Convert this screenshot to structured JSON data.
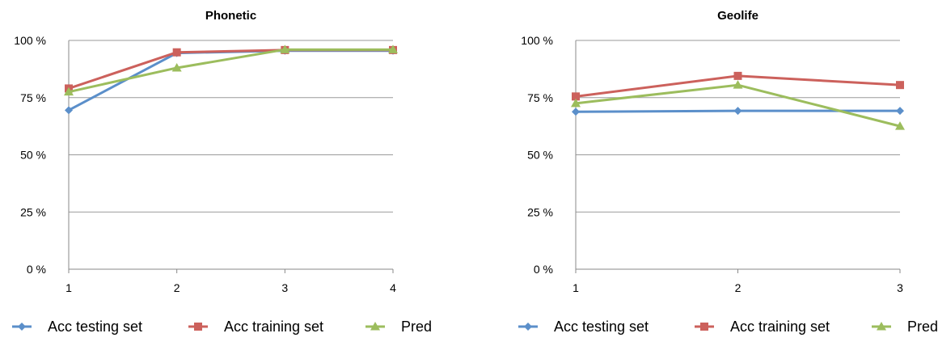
{
  "chart_data": [
    {
      "type": "line",
      "title": "Phonetic",
      "xlabel": "",
      "ylabel": "",
      "x": [
        1,
        2,
        3,
        4
      ],
      "ylim": [
        0,
        100
      ],
      "yticks": [
        "0 %",
        "25 %",
        "50 %",
        "75 %",
        "100 %"
      ],
      "ytick_values": [
        0,
        25,
        50,
        75,
        100
      ],
      "grid": true,
      "legend_position": "bottom",
      "series": [
        {
          "name": "Acc testing set",
          "color": "#5b8fca",
          "marker": "diamond",
          "values": [
            69.5,
            94.5,
            95.5,
            95.5
          ]
        },
        {
          "name": "Acc training set",
          "color": "#cc615c",
          "marker": "square",
          "values": [
            79,
            94.8,
            95.8,
            95.8
          ]
        },
        {
          "name": "Pred",
          "color": "#9cbd5d",
          "marker": "triangle",
          "values": [
            77.5,
            88,
            96,
            96
          ]
        }
      ]
    },
    {
      "type": "line",
      "title": "Geolife",
      "xlabel": "",
      "ylabel": "",
      "x": [
        1,
        2,
        3
      ],
      "ylim": [
        0,
        100
      ],
      "yticks": [
        "0 %",
        "25 %",
        "50 %",
        "75 %",
        "100 %"
      ],
      "ytick_values": [
        0,
        25,
        50,
        75,
        100
      ],
      "grid": true,
      "legend_position": "bottom",
      "series": [
        {
          "name": "Acc testing set",
          "color": "#5b8fca",
          "marker": "diamond",
          "values": [
            68.8,
            69.2,
            69.2
          ]
        },
        {
          "name": "Acc training set",
          "color": "#cc615c",
          "marker": "square",
          "values": [
            75.5,
            84.5,
            80.5
          ]
        },
        {
          "name": "Pred",
          "color": "#9cbd5d",
          "marker": "triangle",
          "values": [
            72.5,
            80.5,
            62.5
          ]
        }
      ]
    }
  ]
}
